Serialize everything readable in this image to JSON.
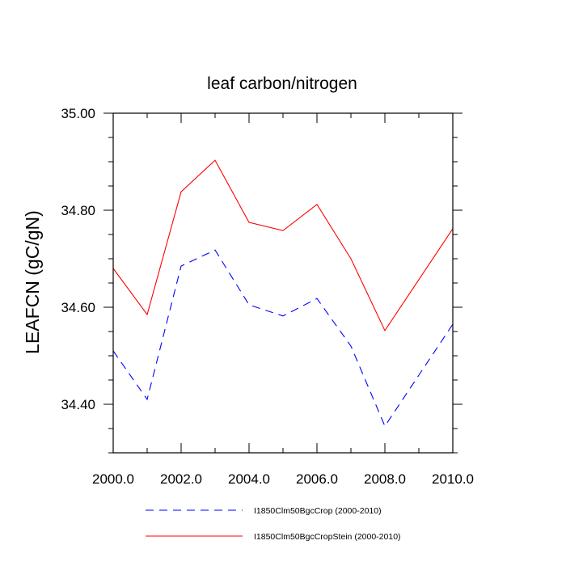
{
  "chart_data": {
    "type": "line",
    "title": "leaf carbon/nitrogen",
    "xlabel": "",
    "ylabel": "LEAFCN  (gC/gN)",
    "xlim": [
      2000,
      2010
    ],
    "ylim": [
      34.3,
      35.0
    ],
    "x_ticks": [
      2000,
      2002,
      2004,
      2006,
      2008,
      2010
    ],
    "x_tick_labels": [
      "2000.0",
      "2002.0",
      "2004.0",
      "2006.0",
      "2008.0",
      "2010.0"
    ],
    "y_ticks": [
      34.4,
      34.6,
      34.8,
      35.0
    ],
    "y_tick_labels": [
      "34.40",
      "34.60",
      "34.80",
      "35.00"
    ],
    "grid": false,
    "legend_position": "bottom",
    "x": [
      2000,
      2001,
      2002,
      2003,
      2004,
      2005,
      2006,
      2007,
      2008,
      2009,
      2010
    ],
    "series": [
      {
        "name": "I1850Clm50BgcCrop (2000-2010)",
        "color": "#0000ff",
        "dash": "dashed",
        "values": [
          34.51,
          34.41,
          34.685,
          34.718,
          34.605,
          34.582,
          34.618,
          34.52,
          34.355,
          34.46,
          34.565
        ]
      },
      {
        "name": "I1850Clm50BgcCropStein (2000-2010)",
        "color": "#ff0000",
        "dash": "solid",
        "values": [
          34.68,
          34.585,
          34.838,
          34.903,
          34.775,
          34.758,
          34.812,
          34.7,
          34.552,
          34.657,
          34.762
        ]
      }
    ]
  }
}
